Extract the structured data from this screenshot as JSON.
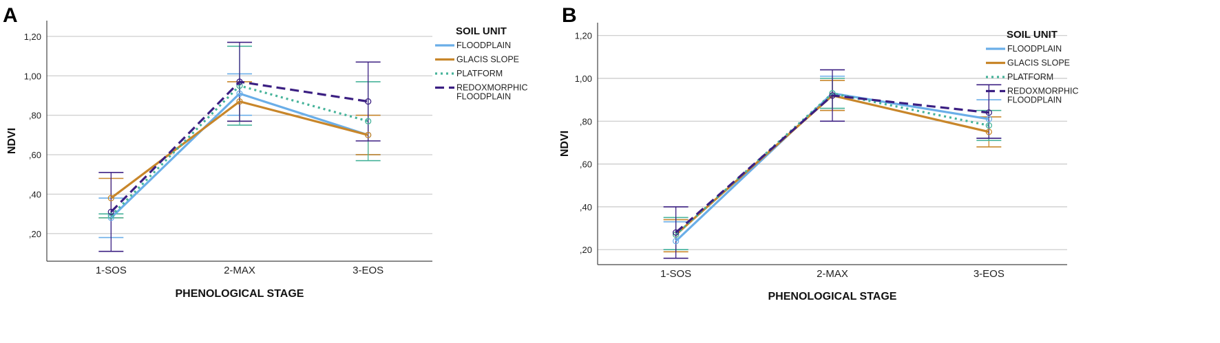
{
  "chart_data": [
    {
      "panel_label": "A",
      "type": "line",
      "categories": [
        "1-SOS",
        "2-MAX",
        "3-EOS"
      ],
      "xlabel": "PHENOLOGICAL STAGE",
      "ylabel": "NDVI",
      "ylim": [
        0.06,
        1.28
      ],
      "yticks": [
        0.2,
        0.4,
        0.6,
        0.8,
        1.0,
        1.2
      ],
      "ytick_labels": [
        ",20",
        ",40",
        ",60",
        ",80",
        "1,00",
        "1,20"
      ],
      "grid": true,
      "legend_title": "SOIL UNIT",
      "legend_position": "right",
      "series": [
        {
          "name": "FLOODPLAIN",
          "color": "#6aaee8",
          "dash": "solid",
          "values": [
            0.28,
            0.91,
            0.7
          ],
          "err_low": [
            0.18,
            0.8,
            0.6
          ],
          "err_high": [
            0.38,
            1.01,
            0.8
          ]
        },
        {
          "name": "GLACIS SLOPE",
          "color": "#c8862a",
          "dash": "solid",
          "values": [
            0.38,
            0.87,
            0.7
          ],
          "err_low": [
            0.28,
            0.77,
            0.6
          ],
          "err_high": [
            0.48,
            0.97,
            0.8
          ]
        },
        {
          "name": "PLATFORM",
          "color": "#46b39a",
          "dash": "dotted",
          "values": [
            0.29,
            0.95,
            0.77
          ],
          "err_low": [
            0.28,
            0.75,
            0.57
          ],
          "err_high": [
            0.3,
            1.15,
            0.97
          ]
        },
        {
          "name": "REDOXMORPHIC FLOODPLAIN",
          "color": "#3b1f82",
          "dash": "dashed",
          "values": [
            0.31,
            0.97,
            0.87
          ],
          "err_low": [
            0.11,
            0.77,
            0.67
          ],
          "err_high": [
            0.51,
            1.17,
            1.07
          ]
        }
      ]
    },
    {
      "panel_label": "B",
      "type": "line",
      "categories": [
        "1-SOS",
        "2-MAX",
        "3-EOS"
      ],
      "xlabel": "PHENOLOGICAL STAGE",
      "ylabel": "NDVI",
      "ylim": [
        0.13,
        1.26
      ],
      "yticks": [
        0.2,
        0.4,
        0.6,
        0.8,
        1.0,
        1.2
      ],
      "ytick_labels": [
        ",20",
        ",40",
        ",60",
        ",80",
        "1,00",
        "1,20"
      ],
      "grid": true,
      "legend_title": "SOIL UNIT",
      "legend_position": "right",
      "series": [
        {
          "name": "FLOODPLAIN",
          "color": "#6aaee8",
          "dash": "solid",
          "values": [
            0.24,
            0.93,
            0.81
          ],
          "err_low": [
            0.2,
            0.85,
            0.72
          ],
          "err_high": [
            0.33,
            1.01,
            0.9
          ]
        },
        {
          "name": "GLACIS SLOPE",
          "color": "#c8862a",
          "dash": "solid",
          "values": [
            0.27,
            0.92,
            0.75
          ],
          "err_low": [
            0.19,
            0.85,
            0.68
          ],
          "err_high": [
            0.34,
            0.99,
            0.82
          ]
        },
        {
          "name": "PLATFORM",
          "color": "#46b39a",
          "dash": "dotted",
          "values": [
            0.27,
            0.93,
            0.78
          ],
          "err_low": [
            0.2,
            0.86,
            0.71
          ],
          "err_high": [
            0.35,
            1.0,
            0.85
          ]
        },
        {
          "name": "REDOXMORPHIC FLOODPLAIN",
          "color": "#3b1f82",
          "dash": "dashed",
          "values": [
            0.28,
            0.92,
            0.84
          ],
          "err_low": [
            0.16,
            0.8,
            0.72
          ],
          "err_high": [
            0.4,
            1.04,
            0.97
          ]
        }
      ]
    }
  ]
}
